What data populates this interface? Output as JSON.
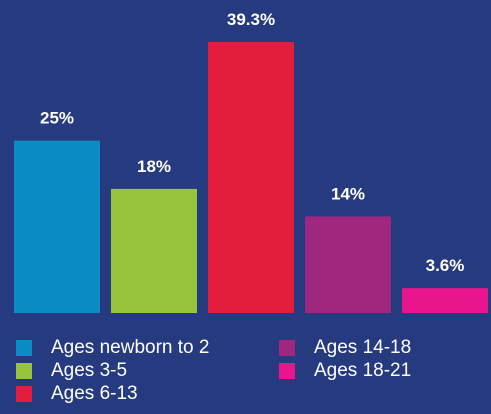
{
  "chart_data": {
    "type": "bar",
    "categories": [
      "Ages newborn to 2",
      "Ages 3-5",
      "Ages 6-13",
      "Ages 14-18",
      "Ages 18-21"
    ],
    "values": [
      25,
      18,
      39.3,
      14,
      3.6
    ],
    "value_labels": [
      "25%",
      "18%",
      "39.3%",
      "14%",
      "3.6%"
    ],
    "colors": [
      "#0b8cc4",
      "#97c43c",
      "#e31e3c",
      "#a0277f",
      "#e8158c"
    ],
    "ylim": [
      0,
      39.3
    ],
    "grid": false,
    "legend": "bottom"
  }
}
